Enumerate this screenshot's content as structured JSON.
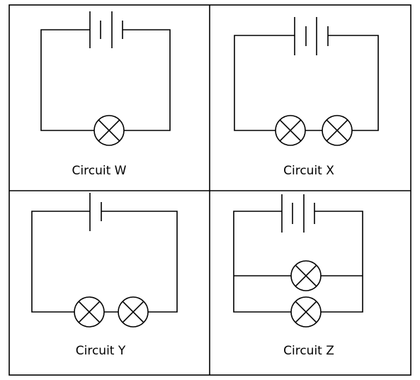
{
  "panels": {
    "w": {
      "label": "Circuit W"
    },
    "x": {
      "label": "Circuit X"
    },
    "y": {
      "label": "Circuit Y"
    },
    "z": {
      "label": "Circuit Z"
    }
  }
}
